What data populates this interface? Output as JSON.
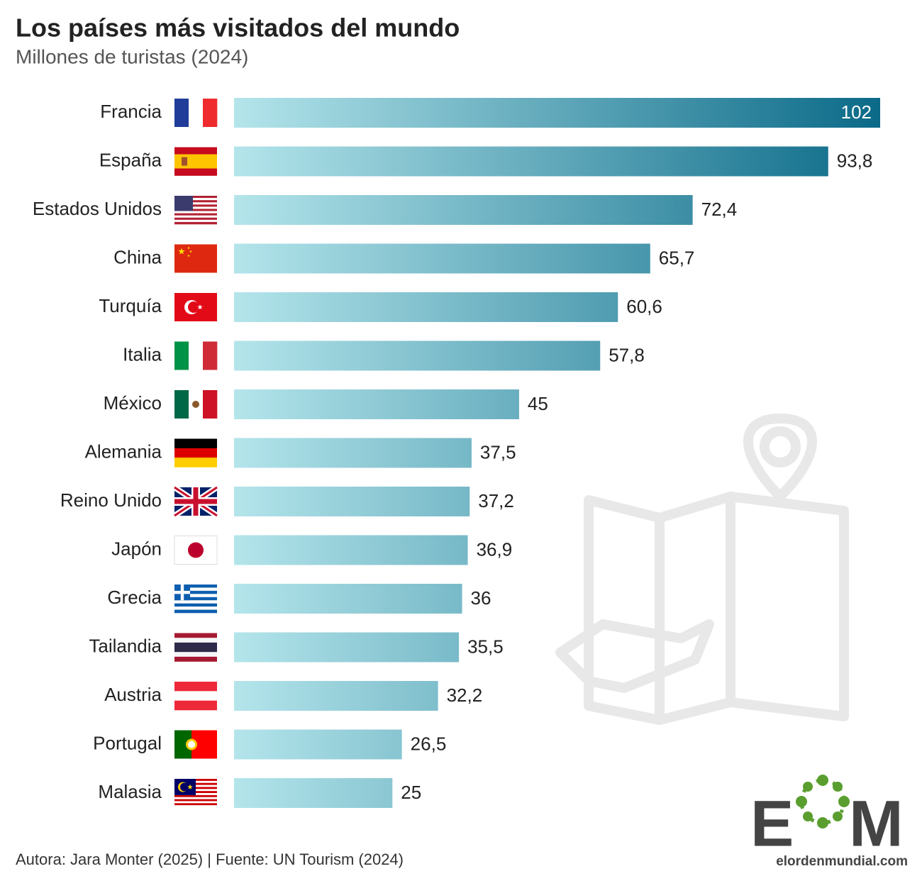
{
  "chart_data": {
    "type": "bar",
    "orientation": "horizontal",
    "title": "Los países más visitados del mundo",
    "subtitle": "Millones de turistas (2024)",
    "categories": [
      "Francia",
      "España",
      "Estados Unidos",
      "China",
      "Turquía",
      "Italia",
      "México",
      "Alemania",
      "Reino Unido",
      "Japón",
      "Grecia",
      "Tailandia",
      "Austria",
      "Portugal",
      "Malasia"
    ],
    "values": [
      102,
      93.8,
      72.4,
      65.7,
      60.6,
      57.8,
      45,
      37.5,
      37.2,
      36.9,
      36,
      35.5,
      32.2,
      26.5,
      25
    ],
    "value_labels": [
      "102",
      "93,8",
      "72,4",
      "65,7",
      "60,6",
      "57,8",
      "45",
      "37,5",
      "37,2",
      "36,9",
      "36",
      "35,5",
      "32,2",
      "26,5",
      "25"
    ],
    "colors": [
      "#b4e5eb",
      "#0b6a88"
    ],
    "source": "Autora: Jara Monter (2025) | Fuente: UN Tourism (2024)",
    "logo": {
      "letters": [
        "E",
        "M"
      ],
      "site": "elordenmundial.com"
    }
  }
}
